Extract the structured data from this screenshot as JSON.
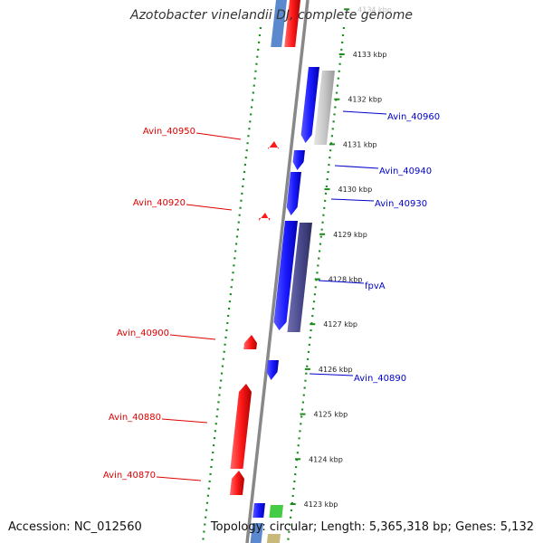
{
  "title": "Azotobacter vinelandii DJ, complete genome",
  "accession": "Accession: NC_012560",
  "summary": "Topology: circular; Length: 5,365,318 bp; Genes: 5,132",
  "colors": {
    "forward_gene": "#1a1aff",
    "reverse_gene": "#ff1a1a",
    "label_forward": "#0000cc",
    "label_reverse": "#dd0000",
    "tick_green": "#1a8a1a",
    "backbone": "#888888",
    "fpvA": "#4b4b8f",
    "gray_feature": "#c8c8c8"
  },
  "ticks": [
    {
      "kbp": 4134,
      "label": "4134 kbp",
      "faded": true
    },
    {
      "kbp": 4133,
      "label": "4133 kbp"
    },
    {
      "kbp": 4132,
      "label": "4132 kbp"
    },
    {
      "kbp": 4131,
      "label": "4131 kbp"
    },
    {
      "kbp": 4130,
      "label": "4130 kbp"
    },
    {
      "kbp": 4129,
      "label": "4129 kbp"
    },
    {
      "kbp": 4128,
      "label": "4128 kbp"
    },
    {
      "kbp": 4127,
      "label": "4127 kbp"
    },
    {
      "kbp": 4126,
      "label": "4126 kbp"
    },
    {
      "kbp": 4125,
      "label": "4125 kbp"
    },
    {
      "kbp": 4124,
      "label": "4124 kbp"
    },
    {
      "kbp": 4123,
      "label": "4123 kbp"
    }
  ],
  "gene_labels": {
    "forward": [
      "Avin_40960",
      "Avin_40940",
      "Avin_40930",
      "fpvA",
      "Avin_40890"
    ],
    "reverse": [
      "Avin_40950",
      "Avin_40920",
      "Avin_40900",
      "Avin_40880",
      "Avin_40870"
    ]
  }
}
